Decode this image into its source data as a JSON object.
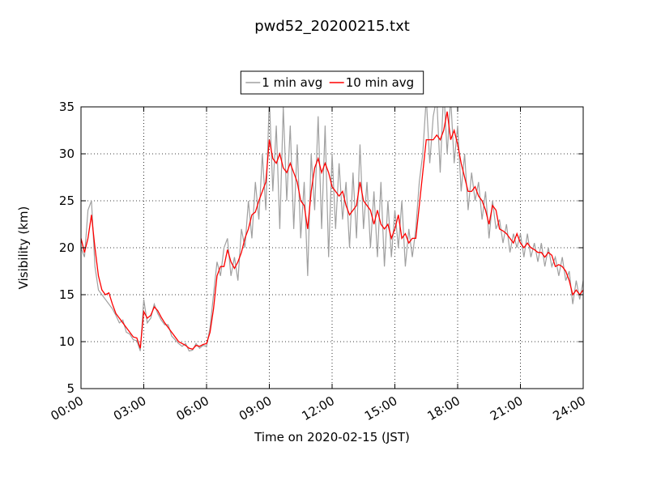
{
  "chart_data": {
    "type": "line",
    "title": "pwd52_20200215.txt",
    "x_label": "Time on 2020-02-15 (JST)",
    "y_label": "Visibility (km)",
    "x": [
      0,
      10,
      20,
      30,
      40,
      50,
      60,
      70,
      80,
      90,
      100,
      110,
      120,
      130,
      140,
      150,
      160,
      170,
      180,
      190,
      200,
      210,
      220,
      230,
      240,
      250,
      260,
      270,
      280,
      290,
      300,
      310,
      320,
      330,
      340,
      350,
      360,
      370,
      380,
      390,
      400,
      410,
      420,
      430,
      440,
      450,
      460,
      470,
      480,
      490,
      500,
      510,
      520,
      530,
      540,
      550,
      560,
      570,
      580,
      590,
      600,
      610,
      620,
      630,
      640,
      650,
      660,
      670,
      680,
      690,
      700,
      710,
      720,
      730,
      740,
      750,
      760,
      770,
      780,
      790,
      800,
      810,
      820,
      830,
      840,
      850,
      860,
      870,
      880,
      890,
      900,
      910,
      920,
      930,
      940,
      950,
      960,
      970,
      980,
      990,
      1000,
      1010,
      1020,
      1030,
      1040,
      1050,
      1060,
      1070,
      1080,
      1090,
      1100,
      1110,
      1120,
      1130,
      1140,
      1150,
      1160,
      1170,
      1180,
      1190,
      1200,
      1210,
      1220,
      1230,
      1240,
      1250,
      1260,
      1270,
      1280,
      1290,
      1300,
      1310,
      1320,
      1330,
      1340,
      1350,
      1360,
      1370,
      1380,
      1390,
      1400,
      1410,
      1420,
      1430,
      1440
    ],
    "series": [
      {
        "name": "1 min avg",
        "color": "#a0a0a0",
        "values": [
          20,
          19,
          24,
          25,
          18,
          15.5,
          15,
          14.5,
          14,
          13.5,
          12.8,
          12,
          12.3,
          11,
          10.8,
          10.2,
          10.1,
          9.0,
          14.5,
          12,
          12.5,
          14,
          13,
          12.3,
          11.8,
          11.8,
          10.6,
          10.2,
          9.8,
          9.5,
          9.8,
          9.0,
          9.1,
          9.8,
          9.3,
          9.6,
          9.5,
          11.5,
          15,
          18.5,
          17,
          20,
          21,
          17,
          19,
          16.5,
          22,
          20,
          25,
          21,
          27,
          23,
          30,
          24,
          36,
          26,
          33,
          22,
          35,
          25,
          33,
          22,
          31,
          21,
          27,
          17,
          30,
          24,
          34,
          22,
          33,
          19,
          30,
          22,
          29,
          23,
          27,
          20,
          28,
          21,
          31,
          22,
          27,
          20,
          26,
          19,
          27,
          18,
          25,
          19,
          24,
          20,
          25,
          18,
          22,
          19,
          22,
          27,
          30,
          36,
          29,
          34,
          36,
          28,
          37,
          30,
          36,
          29,
          33,
          26,
          30,
          24,
          28,
          25,
          27,
          23,
          26,
          21,
          25,
          22,
          23,
          20.5,
          22.5,
          19.5,
          21.5,
          20,
          21.5,
          19,
          21.5,
          19,
          20.5,
          18.5,
          20.5,
          18,
          20,
          18,
          19,
          17,
          19,
          16.5,
          17.5,
          14,
          16.5,
          14.5,
          16.5
        ]
      },
      {
        "name": "10 min avg",
        "color": "#ff0000",
        "values": [
          21,
          19.5,
          21,
          23.5,
          20,
          17,
          15.5,
          15,
          15.2,
          14,
          13,
          12.5,
          12,
          11.5,
          11,
          10.5,
          10.4,
          9.3,
          13.2,
          12.5,
          12.8,
          13.7,
          13.3,
          12.6,
          12,
          11.5,
          11,
          10.5,
          10,
          9.8,
          9.6,
          9.3,
          9.2,
          9.6,
          9.5,
          9.7,
          9.8,
          11,
          13.5,
          17,
          18,
          18,
          19.8,
          18.5,
          17.8,
          18.5,
          19.5,
          21,
          22,
          23.5,
          23.8,
          25,
          26,
          27,
          31.5,
          29.5,
          29,
          30,
          28.5,
          28,
          29,
          28,
          27,
          25,
          24.5,
          22,
          26,
          28.5,
          29.5,
          28,
          29,
          28,
          26.5,
          26,
          25.5,
          26,
          24.5,
          23.5,
          24,
          24.5,
          27,
          25,
          24.5,
          24,
          22.5,
          24,
          22.5,
          22,
          22.5,
          21,
          22,
          23.5,
          21,
          21.5,
          20.5,
          21,
          21,
          24.5,
          28,
          31.5,
          31.5,
          31.5,
          32,
          31.5,
          32.5,
          34.5,
          31.5,
          32.5,
          31,
          29,
          27.5,
          26,
          26,
          26.5,
          25.5,
          25,
          24,
          22.5,
          24.5,
          24,
          22,
          21.8,
          21.5,
          21,
          20.5,
          21.5,
          20.5,
          20,
          20.5,
          20,
          19.8,
          19.5,
          19.5,
          19,
          19.5,
          19.2,
          18,
          18.2,
          18,
          17.5,
          16.5,
          15,
          15.5,
          15,
          15.5
        ]
      }
    ],
    "xlim": [
      0,
      1440
    ],
    "xticks": [
      {
        "value": 0,
        "label": "00:00"
      },
      {
        "value": 180,
        "label": "03:00"
      },
      {
        "value": 360,
        "label": "06:00"
      },
      {
        "value": 540,
        "label": "09:00"
      },
      {
        "value": 720,
        "label": "12:00"
      },
      {
        "value": 900,
        "label": "15:00"
      },
      {
        "value": 1080,
        "label": "18:00"
      },
      {
        "value": 1260,
        "label": "21:00"
      },
      {
        "value": 1440,
        "label": "24:00"
      }
    ],
    "ylim": [
      5,
      35
    ],
    "yticks": [
      5,
      10,
      15,
      20,
      25,
      30,
      35
    ],
    "grid": true,
    "legend": "upper center"
  }
}
